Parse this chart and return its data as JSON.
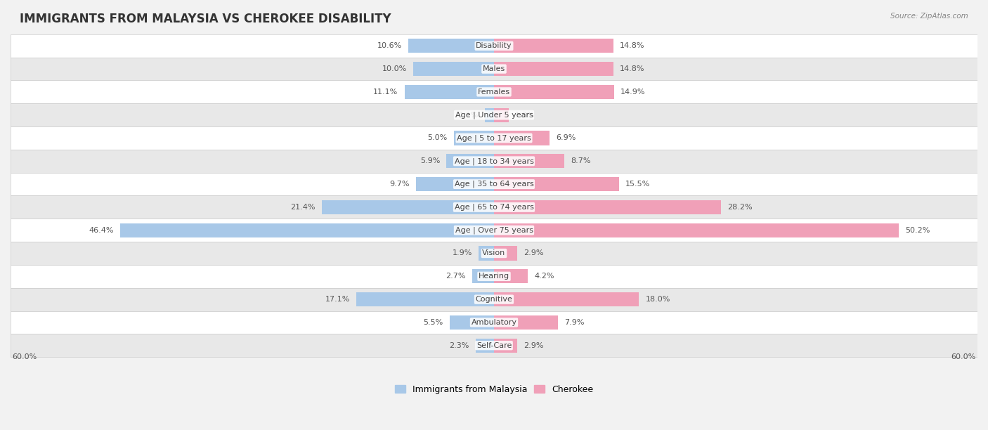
{
  "title": "IMMIGRANTS FROM MALAYSIA VS CHEROKEE DISABILITY",
  "source": "Source: ZipAtlas.com",
  "categories": [
    "Disability",
    "Males",
    "Females",
    "Age | Under 5 years",
    "Age | 5 to 17 years",
    "Age | 18 to 34 years",
    "Age | 35 to 64 years",
    "Age | 65 to 74 years",
    "Age | Over 75 years",
    "Vision",
    "Hearing",
    "Cognitive",
    "Ambulatory",
    "Self-Care"
  ],
  "malaysia_values": [
    10.6,
    10.0,
    11.1,
    1.1,
    5.0,
    5.9,
    9.7,
    21.4,
    46.4,
    1.9,
    2.7,
    17.1,
    5.5,
    2.3
  ],
  "cherokee_values": [
    14.8,
    14.8,
    14.9,
    1.8,
    6.9,
    8.7,
    15.5,
    28.2,
    50.2,
    2.9,
    4.2,
    18.0,
    7.9,
    2.9
  ],
  "malaysia_color": "#a8c8e8",
  "cherokee_color": "#f0a0b8",
  "malaysia_color_solid": "#6699cc",
  "cherokee_color_solid": "#ee6688",
  "background_color": "#f2f2f2",
  "row_bg_light": "#ffffff",
  "row_bg_dark": "#e8e8e8",
  "xlim": 60.0,
  "legend_malaysia": "Immigrants from Malaysia",
  "legend_cherokee": "Cherokee",
  "title_fontsize": 12,
  "label_fontsize": 8,
  "value_fontsize": 8
}
